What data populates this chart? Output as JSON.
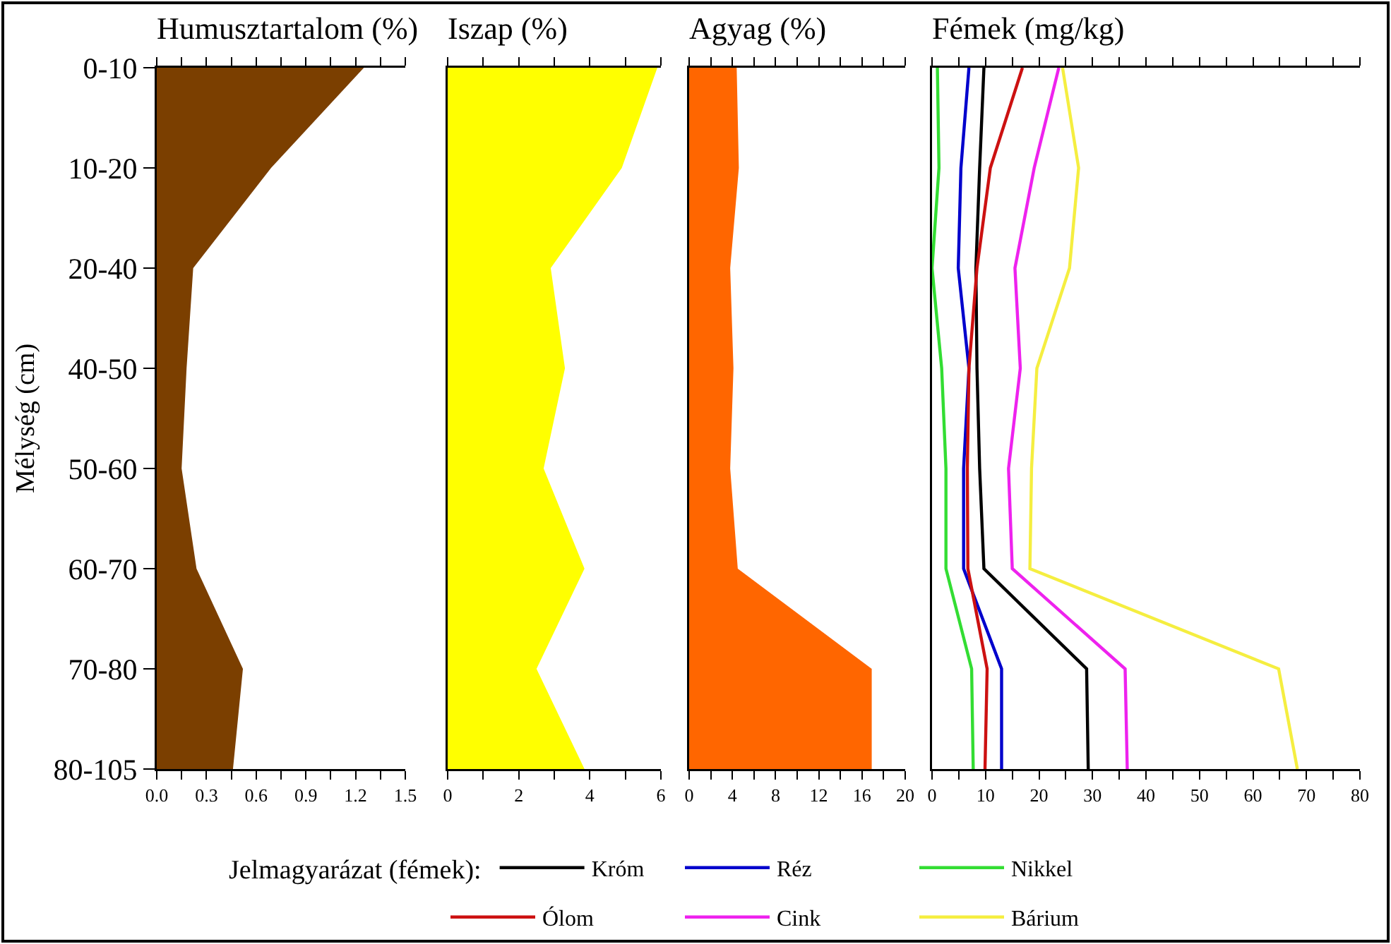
{
  "chart_data": [
    {
      "type": "area",
      "orientation": "horizontal",
      "title": "Humusztartalom (%)",
      "ylabel": "Mélység (cm)",
      "categories": [
        "0-10",
        "10-20",
        "20-40",
        "40-50",
        "50-60",
        "60-70",
        "70-80",
        "80-105"
      ],
      "values": [
        1.25,
        0.69,
        0.22,
        0.18,
        0.15,
        0.24,
        0.52,
        0.46
      ],
      "color": "#7b3f00",
      "xlim": [
        0,
        1.5
      ],
      "xticks": [
        {
          "value": 0,
          "label": "0.0"
        },
        {
          "value": 0.15,
          "label": null
        },
        {
          "value": 0.3,
          "label": "0.3"
        },
        {
          "value": 0.45,
          "label": null
        },
        {
          "value": 0.6,
          "label": "0.6"
        },
        {
          "value": 0.75,
          "label": null
        },
        {
          "value": 0.9,
          "label": "0.9"
        },
        {
          "value": 1.05,
          "label": null
        },
        {
          "value": 1.2,
          "label": "1.2"
        },
        {
          "value": 1.35,
          "label": null
        },
        {
          "value": 1.5,
          "label": "1.5"
        }
      ]
    },
    {
      "type": "area",
      "orientation": "horizontal",
      "title": "Iszap (%)",
      "tick_labels": "x",
      "categories": [
        null,
        null,
        null,
        null,
        null,
        null,
        null,
        null
      ],
      "values": [
        5.9,
        4.9,
        2.9,
        3.3,
        2.7,
        3.85,
        2.5,
        3.85
      ],
      "color": "#ffff00",
      "xlim": [
        0,
        6
      ],
      "xticks": [
        0,
        {
          "value": 1,
          "label": null
        },
        2,
        {
          "value": 3,
          "label": null
        },
        4,
        {
          "value": 5,
          "label": null
        },
        6
      ]
    },
    {
      "type": "area",
      "orientation": "horizontal",
      "title": "Agyag (%)",
      "tick_labels": "x",
      "categories": [
        null,
        null,
        null,
        null,
        null,
        null,
        null,
        null
      ],
      "values": [
        4.4,
        4.6,
        3.8,
        4.1,
        3.8,
        4.5,
        16.9,
        16.9
      ],
      "color": "#ff6600",
      "xlim": [
        0,
        20
      ],
      "xticks": [
        0,
        {
          "value": 2,
          "label": null
        },
        4,
        {
          "value": 6,
          "label": null
        },
        8,
        {
          "value": 10,
          "label": null
        },
        12,
        {
          "value": 14,
          "label": null
        },
        16,
        {
          "value": 18,
          "label": null
        },
        20
      ]
    },
    {
      "type": "line",
      "orientation": "horizontal",
      "title": "Fémek (mg/kg)",
      "tick_labels": "x",
      "legend": "bottom",
      "legend_title": "Jelmagyarázat (fémek):",
      "categories": [
        null,
        null,
        null,
        null,
        null,
        null,
        null,
        null
      ],
      "xlim": [
        0,
        80
      ],
      "xticks": [
        0,
        {
          "value": 5,
          "label": null
        },
        10,
        {
          "value": 15,
          "label": null
        },
        20,
        {
          "value": 25,
          "label": null
        },
        30,
        {
          "value": 35,
          "label": null
        },
        40,
        {
          "value": 45,
          "label": null
        },
        50,
        {
          "value": 55,
          "label": null
        },
        60,
        {
          "value": 65,
          "label": null
        },
        70,
        {
          "value": 75,
          "label": null
        },
        80
      ],
      "series": [
        {
          "name": "Króm",
          "color": "#000000",
          "values": [
            9.7,
            8.9,
            8.2,
            8.4,
            8.9,
            9.7,
            28.9,
            29.2
          ]
        },
        {
          "name": "Réz",
          "color": "#0000cc",
          "values": [
            6.9,
            5.4,
            4.9,
            6.9,
            5.9,
            5.9,
            13,
            13
          ]
        },
        {
          "name": "Nikkel",
          "color": "#33dd33",
          "values": [
            1,
            1.3,
            0,
            1.8,
            2.6,
            2.6,
            7.4,
            7.7
          ]
        },
        {
          "name": "Ólom",
          "color": "#cc1111",
          "values": [
            16.9,
            10.9,
            8.4,
            6.9,
            6.6,
            6.7,
            10.3,
            9.9
          ]
        },
        {
          "name": "Cink",
          "color": "#ee22ee",
          "values": [
            23.7,
            19.1,
            15.5,
            16.5,
            14.3,
            15,
            36.1,
            36.5
          ]
        },
        {
          "name": "Bárium",
          "color": "#f5ee40",
          "values": [
            24.4,
            27.4,
            25.7,
            19.6,
            18.6,
            18.3,
            64.8,
            68.3
          ]
        }
      ]
    }
  ]
}
